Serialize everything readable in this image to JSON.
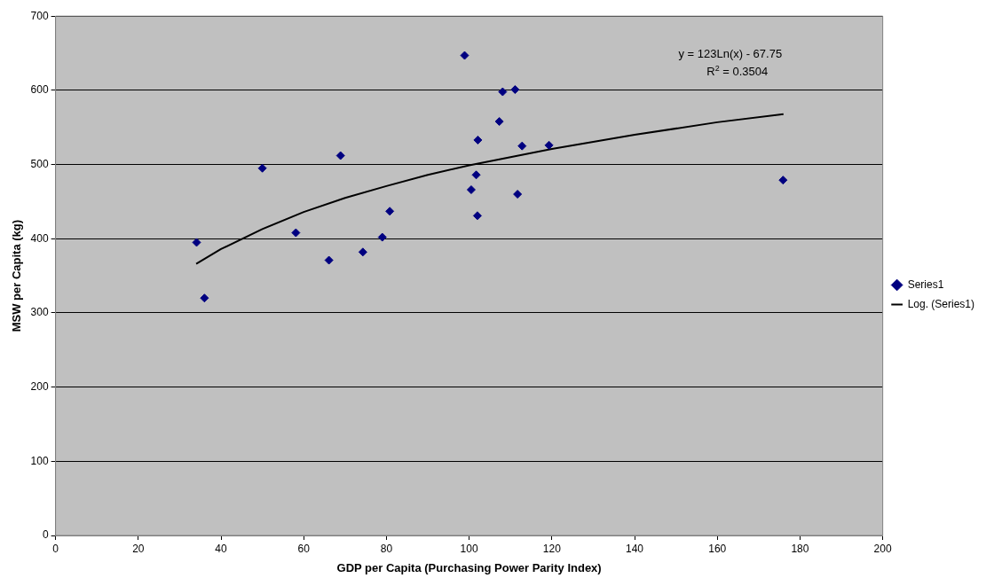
{
  "chart_data": {
    "type": "scatter",
    "xlabel": "GDP per Capita (Purchasing Power Parity Index)",
    "ylabel": "MSW per Capita (kg)",
    "xlim": [
      0,
      200
    ],
    "xticks": [
      0,
      20,
      40,
      60,
      80,
      100,
      120,
      140,
      160,
      180,
      200
    ],
    "ylim": [
      0,
      700
    ],
    "yticks": [
      0,
      100,
      200,
      300,
      400,
      500,
      600,
      700
    ],
    "grid": "y",
    "legend": "right",
    "series": [
      {
        "name": "Series1",
        "color": "#000080",
        "marker": "diamond",
        "x": [
          34.1,
          36,
          50,
          68.9,
          58.1,
          66.1,
          74.3,
          79,
          80.8,
          98.9,
          108.1,
          111.1,
          107.3,
          102.1,
          112.8,
          119.3,
          101.7,
          100.5,
          111.7,
          102,
          175.9
        ],
        "values": [
          395,
          320,
          495,
          512,
          408,
          371,
          382,
          402,
          437,
          647,
          598,
          601,
          558,
          533,
          525,
          526,
          486,
          466,
          460,
          431,
          479
        ]
      },
      {
        "name": "Log. (Series1)",
        "type": "line",
        "color": "#000000",
        "line_style": "solid",
        "x": [
          34,
          40,
          50,
          60,
          70,
          80,
          90,
          100,
          120,
          140,
          160,
          176
        ],
        "marker": "none",
        "values": [
          366,
          386,
          413,
          436,
          455,
          471,
          486,
          499,
          521,
          540,
          557,
          568
        ]
      }
    ],
    "annotations": [
      "y = 123Ln(x) - 67.75",
      "R$^{2}$ = 0.3504"
    ]
  }
}
